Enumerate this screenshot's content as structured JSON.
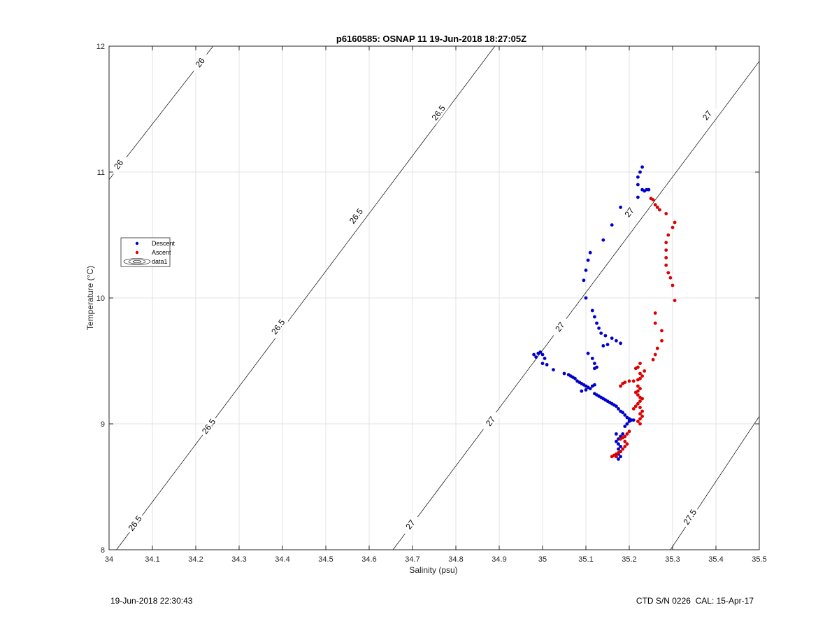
{
  "footer": {
    "left": "19-Jun-2018 22:30:43",
    "right": "CTD S/N 0226  CAL: 15-Apr-17"
  },
  "chart_data": {
    "type": "scatter",
    "title": "p6160585: OSNAP 11 19-Jun-2018 18:27:05Z",
    "xlabel": "Salinity (psu)",
    "ylabel": "Temperature (°C)",
    "xlim": [
      34,
      35.5
    ],
    "ylim": [
      8,
      12
    ],
    "xticks": [
      34,
      34.1,
      34.2,
      34.3,
      34.4,
      34.5,
      34.6,
      34.7,
      34.8,
      34.9,
      35,
      35.1,
      35.2,
      35.3,
      35.4,
      35.5
    ],
    "xtick_labels": [
      "34",
      "34.1",
      "34.2",
      "34.3",
      "34.4",
      "34.5",
      "34.6",
      "34.7",
      "34.8",
      "34.9",
      "35",
      "35.1",
      "35.2",
      "35.3",
      "35.4",
      "35.5"
    ],
    "yticks": [
      8,
      9,
      10,
      11,
      12
    ],
    "ytick_labels": [
      "8",
      "9",
      "10",
      "11",
      "12"
    ],
    "grid": true,
    "legend_position": "left",
    "legend": [
      {
        "label": "Descent",
        "marker": "dot",
        "color": "#0000cc"
      },
      {
        "label": "Ascent",
        "marker": "dot",
        "color": "#dd0000"
      },
      {
        "label": "data1",
        "marker": "contour",
        "color": "#000000"
      }
    ],
    "contours": [
      {
        "label": "26",
        "points": [
          [
            34.0,
            10.94
          ],
          [
            34.24,
            12.0
          ]
        ],
        "label_at": [
          [
            34.022,
            11.06
          ],
          [
            34.21,
            11.87
          ]
        ]
      },
      {
        "label": "26.5",
        "points": [
          [
            34.017,
            8.0
          ],
          [
            34.89,
            12.0
          ]
        ],
        "label_at": [
          [
            34.06,
            8.21
          ],
          [
            34.23,
            8.98
          ],
          [
            34.39,
            9.77
          ],
          [
            34.57,
            10.65
          ],
          [
            34.76,
            11.47
          ]
        ]
      },
      {
        "label": "27",
        "points": [
          [
            34.655,
            8.0
          ],
          [
            35.5,
            11.88
          ]
        ],
        "label_at": [
          [
            34.695,
            8.2
          ],
          [
            34.88,
            9.02
          ],
          [
            35.04,
            9.77
          ],
          [
            35.2,
            10.68
          ],
          [
            35.38,
            11.45
          ]
        ]
      },
      {
        "label": "27.5",
        "points": [
          [
            35.295,
            8.0
          ],
          [
            35.5,
            9.06
          ]
        ],
        "label_at": [
          [
            35.34,
            8.26
          ]
        ]
      }
    ],
    "series": [
      {
        "name": "Descent",
        "color": "#0000cc",
        "points": [
          [
            35.23,
            11.04
          ],
          [
            35.225,
            11.0
          ],
          [
            35.22,
            10.96
          ],
          [
            35.22,
            10.9
          ],
          [
            35.23,
            10.86
          ],
          [
            35.235,
            10.85
          ],
          [
            35.24,
            10.86
          ],
          [
            35.245,
            10.86
          ],
          [
            35.22,
            10.8
          ],
          [
            35.18,
            10.72
          ],
          [
            35.16,
            10.58
          ],
          [
            35.14,
            10.46
          ],
          [
            35.11,
            10.36
          ],
          [
            35.105,
            10.3
          ],
          [
            35.1,
            10.22
          ],
          [
            35.095,
            10.14
          ],
          [
            35.1,
            10.0
          ],
          [
            35.115,
            9.9
          ],
          [
            35.12,
            9.85
          ],
          [
            35.125,
            9.8
          ],
          [
            35.13,
            9.76
          ],
          [
            35.135,
            9.72
          ],
          [
            35.145,
            9.7
          ],
          [
            35.16,
            9.68
          ],
          [
            35.17,
            9.66
          ],
          [
            35.18,
            9.64
          ],
          [
            35.15,
            9.63
          ],
          [
            35.14,
            9.62
          ],
          [
            35.105,
            9.56
          ],
          [
            35.115,
            9.52
          ],
          [
            35.12,
            9.48
          ],
          [
            35.125,
            9.45
          ],
          [
            35.12,
            9.44
          ],
          [
            34.98,
            9.55
          ],
          [
            34.985,
            9.53
          ],
          [
            34.99,
            9.56
          ],
          [
            34.995,
            9.57
          ],
          [
            35.0,
            9.55
          ],
          [
            35.005,
            9.52
          ],
          [
            35.0,
            9.48
          ],
          [
            35.01,
            9.47
          ],
          [
            35.025,
            9.43
          ],
          [
            35.05,
            9.4
          ],
          [
            35.06,
            9.39
          ],
          [
            35.065,
            9.38
          ],
          [
            35.07,
            9.37
          ],
          [
            35.075,
            9.36
          ],
          [
            35.08,
            9.34
          ],
          [
            35.085,
            9.33
          ],
          [
            35.09,
            9.32
          ],
          [
            35.095,
            9.31
          ],
          [
            35.1,
            9.3
          ],
          [
            35.105,
            9.29
          ],
          [
            35.11,
            9.28
          ],
          [
            35.115,
            9.3
          ],
          [
            35.12,
            9.31
          ],
          [
            35.09,
            9.26
          ],
          [
            35.1,
            9.27
          ],
          [
            35.12,
            9.24
          ],
          [
            35.125,
            9.23
          ],
          [
            35.13,
            9.22
          ],
          [
            35.135,
            9.21
          ],
          [
            35.14,
            9.2
          ],
          [
            35.145,
            9.19
          ],
          [
            35.15,
            9.18
          ],
          [
            35.155,
            9.17
          ],
          [
            35.16,
            9.16
          ],
          [
            35.165,
            9.15
          ],
          [
            35.17,
            9.14
          ],
          [
            35.175,
            9.12
          ],
          [
            35.18,
            9.1
          ],
          [
            35.185,
            9.09
          ],
          [
            35.19,
            9.07
          ],
          [
            35.195,
            9.05
          ],
          [
            35.2,
            9.04
          ],
          [
            35.205,
            9.03
          ],
          [
            35.21,
            9.03
          ],
          [
            35.2,
            9.02
          ],
          [
            35.195,
            9.0
          ],
          [
            35.19,
            8.98
          ],
          [
            35.185,
            8.92
          ],
          [
            35.18,
            8.9
          ],
          [
            35.175,
            8.88
          ],
          [
            35.17,
            8.86
          ],
          [
            35.175,
            8.84
          ],
          [
            35.18,
            8.82
          ],
          [
            35.175,
            8.8
          ],
          [
            35.18,
            8.78
          ],
          [
            35.175,
            8.76
          ],
          [
            35.18,
            8.74
          ],
          [
            35.175,
            8.72
          ],
          [
            35.17,
            8.92
          ]
        ]
      },
      {
        "name": "Ascent",
        "color": "#dd0000",
        "points": [
          [
            35.25,
            10.79
          ],
          [
            35.255,
            10.78
          ],
          [
            35.26,
            10.74
          ],
          [
            35.265,
            10.72
          ],
          [
            35.27,
            10.7
          ],
          [
            35.285,
            10.67
          ],
          [
            35.305,
            10.6
          ],
          [
            35.3,
            10.56
          ],
          [
            35.29,
            10.5
          ],
          [
            35.285,
            10.44
          ],
          [
            35.285,
            10.38
          ],
          [
            35.285,
            10.32
          ],
          [
            35.285,
            10.26
          ],
          [
            35.29,
            10.2
          ],
          [
            35.295,
            10.16
          ],
          [
            35.3,
            10.1
          ],
          [
            35.305,
            9.98
          ],
          [
            35.26,
            9.88
          ],
          [
            35.26,
            9.8
          ],
          [
            35.275,
            9.74
          ],
          [
            35.275,
            9.66
          ],
          [
            35.265,
            9.6
          ],
          [
            35.26,
            9.55
          ],
          [
            35.255,
            9.51
          ],
          [
            35.225,
            9.48
          ],
          [
            35.22,
            9.45
          ],
          [
            35.215,
            9.44
          ],
          [
            35.235,
            9.42
          ],
          [
            35.225,
            9.4
          ],
          [
            35.23,
            9.38
          ],
          [
            35.225,
            9.36
          ],
          [
            35.22,
            9.35
          ],
          [
            35.21,
            9.34
          ],
          [
            35.2,
            9.34
          ],
          [
            35.19,
            9.33
          ],
          [
            35.185,
            9.32
          ],
          [
            35.18,
            9.3
          ],
          [
            35.22,
            9.3
          ],
          [
            35.225,
            9.28
          ],
          [
            35.22,
            9.26
          ],
          [
            35.215,
            9.25
          ],
          [
            35.22,
            9.23
          ],
          [
            35.225,
            9.21
          ],
          [
            35.23,
            9.2
          ],
          [
            35.225,
            9.18
          ],
          [
            35.22,
            9.16
          ],
          [
            35.215,
            9.14
          ],
          [
            35.21,
            9.12
          ],
          [
            35.225,
            9.13
          ],
          [
            35.23,
            9.1
          ],
          [
            35.225,
            9.08
          ],
          [
            35.23,
            9.06
          ],
          [
            35.225,
            9.04
          ],
          [
            35.22,
            9.02
          ],
          [
            35.225,
            9.0
          ],
          [
            35.2,
            8.94
          ],
          [
            35.195,
            8.92
          ],
          [
            35.19,
            8.9
          ],
          [
            35.185,
            8.89
          ],
          [
            35.18,
            8.88
          ],
          [
            35.19,
            8.86
          ],
          [
            35.195,
            8.84
          ],
          [
            35.19,
            8.82
          ],
          [
            35.185,
            8.8
          ],
          [
            35.18,
            8.78
          ],
          [
            35.175,
            8.77
          ],
          [
            35.17,
            8.76
          ],
          [
            35.165,
            8.75
          ],
          [
            35.16,
            8.74
          ],
          [
            35.17,
            8.74
          ]
        ]
      }
    ]
  }
}
